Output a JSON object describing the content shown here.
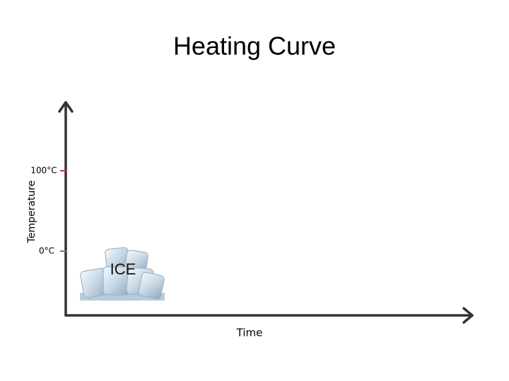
{
  "title": "Heating Curve",
  "axes": {
    "y_label": "Temperature",
    "x_label": "Time",
    "y_ticks": [
      "100°C",
      "0°C"
    ]
  },
  "image": {
    "label": "ICE"
  }
}
